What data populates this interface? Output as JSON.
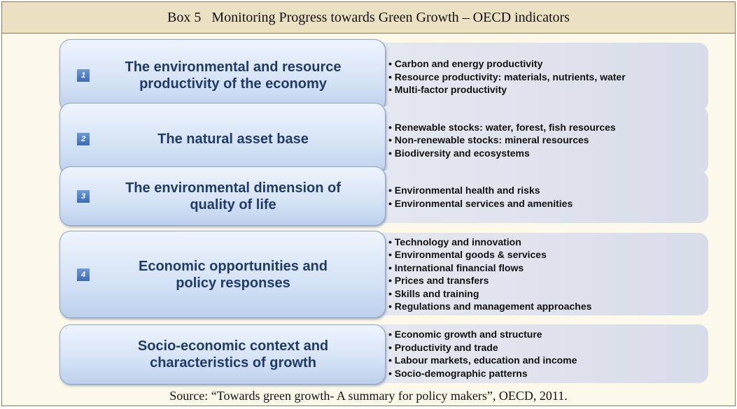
{
  "title": "Box 5   Monitoring Progress towards Green Growth – OECD indicators",
  "items": [
    {
      "number": "1",
      "label": [
        "The environmental and resource",
        "productivity of the economy"
      ],
      "bullets": [
        "Carbon and energy productivity",
        "Resource productivity: materials, nutrients, water",
        "Multi-factor productivity"
      ]
    },
    {
      "number": "2",
      "label": [
        "The natural asset base"
      ],
      "bullets": [
        "Renewable stocks: water, forest, fish resources",
        "Non-renewable stocks: mineral resources",
        "Biodiversity and ecosystems"
      ]
    },
    {
      "number": "3",
      "label": [
        "The environmental dimension of",
        "quality of life"
      ],
      "bullets": [
        "Environmental health and risks",
        "Environmental services and amenities"
      ]
    },
    {
      "number": "4",
      "label": [
        "Economic opportunities and",
        "policy responses"
      ],
      "bullets": [
        "Technology and innovation",
        "Environmental goods & services",
        "International financial flows",
        "Prices and transfers",
        "Skills and training",
        "Regulations and management approaches"
      ]
    },
    {
      "label": [
        "Socio-economic context and",
        "characteristics of growth"
      ],
      "bullets": [
        "Economic growth and structure",
        "Productivity and trade",
        "Labour markets, education and income",
        "Socio-demographic patterns"
      ]
    }
  ],
  "source": "Source: “Towards green growth- A summary for policy makers”, OECD, 2011."
}
